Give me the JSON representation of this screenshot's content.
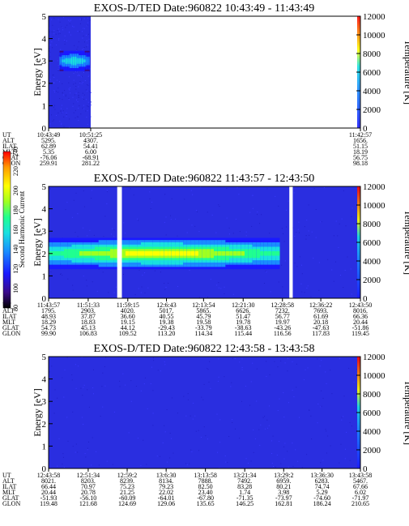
{
  "chart_data": {
    "type": "heatmap",
    "colorbar": {
      "label": "Second Harmonic Current",
      "ticks": [
        "240",
        "220",
        "200",
        "180",
        "160",
        "140",
        "120",
        "100",
        "80"
      ],
      "range": [
        80,
        240
      ]
    },
    "panels": [
      {
        "title": "EXOS-D/TED   Date:960822  10:43:49 - 11:43:49",
        "ylabel": "Energy [eV]",
        "y2label": "Temperature [K]",
        "ylim": [
          0,
          5
        ],
        "y_ticks": [
          "0",
          "1",
          "2",
          "3",
          "4",
          "5"
        ],
        "y2lim": [
          0,
          12000
        ],
        "y2_ticks": [
          "0",
          "2000",
          "4000",
          "6000",
          "8000",
          "10000",
          "12000"
        ],
        "data_end_fraction": 0.135,
        "band": {
          "energy_center": 3.0,
          "energy_halfwidth": 0.45,
          "x_start_fraction": 0.035,
          "x_end_fraction": 0.13,
          "intensity": 160
        },
        "gaps": [],
        "temperature_trace": [],
        "table": {
          "row_labels": [
            "UT",
            "ALT",
            "ILAT",
            "MLT",
            "GLAT",
            "GLON"
          ],
          "columns": [
            {
              "values": [
                "10:43:49",
                "5295.",
                "62.89",
                "5.35",
                "-76.06",
                "259.91"
              ]
            },
            {
              "values": [
                "10:51:25",
                "4307.",
                "54.41",
                "6.00",
                "-68.91",
                "281.22"
              ]
            },
            {
              "values": [
                "11:42:57",
                "1656.",
                "51.15",
                "18.19",
                "56.75",
                "98.18"
              ]
            }
          ],
          "column_fractions": [
            0.0,
            0.135,
            1.0
          ]
        }
      },
      {
        "title": "EXOS-D/TED   Date:960822  11:43:57 - 12:43:50",
        "ylabel": "Energy [eV]",
        "y2label": "Temperature [K]",
        "ylim": [
          0,
          5
        ],
        "y_ticks": [
          "0",
          "1",
          "2",
          "3",
          "4",
          "5"
        ],
        "y2lim": [
          0,
          12000
        ],
        "y2_ticks": [
          "0",
          "2000",
          "4000",
          "6000",
          "8000",
          "10000",
          "12000"
        ],
        "data_end_fraction": 1.0,
        "band": {
          "energy_center": 2.0,
          "energy_halfwidth": 0.7,
          "x_start_fraction": 0.0,
          "x_end_fraction": 0.74,
          "intensity": 200
        },
        "gaps": [
          [
            0.22,
            0.235
          ],
          [
            0.772,
            0.783
          ]
        ],
        "temperature_trace": [],
        "table": {
          "row_labels": [
            "UT",
            "ALT",
            "ILAT",
            "MLT",
            "GLAT",
            "GLON"
          ],
          "columns": [
            {
              "values": [
                "11:43:57",
                "1795.",
                "48.93",
                "18.29",
                "54.73",
                "99.90"
              ]
            },
            {
              "values": [
                "11:51:33",
                "2903.",
                "37.87",
                "18.83",
                "45.13",
                "106.83"
              ]
            },
            {
              "values": [
                "11:59:15",
                "4020.",
                "36.60",
                "19.15",
                "44.12",
                "109.52"
              ]
            },
            {
              "values": [
                "12:6:43",
                "5017.",
                "40.55",
                "19.38",
                "-29.43",
                "113.20"
              ]
            },
            {
              "values": [
                "12:13:54",
                "5865.",
                "45.79",
                "19.58",
                "-33.79",
                "114.34"
              ]
            },
            {
              "values": [
                "12:21:30",
                "6626.",
                "51.47",
                "19.78",
                "-38.63",
                "115.44"
              ]
            },
            {
              "values": [
                "12:28:58",
                "7232.",
                "56.77",
                "19.97",
                "-43.26",
                "116.56"
              ]
            },
            {
              "values": [
                "12:36:22",
                "7693.",
                "61.69",
                "20.18",
                "-47.63",
                "117.83"
              ]
            },
            {
              "values": [
                "12:43:50",
                "8016.",
                "66.36",
                "20.44",
                "-51.86",
                "119.45"
              ]
            }
          ],
          "column_fractions": [
            0.0,
            0.127,
            0.254,
            0.378,
            0.497,
            0.624,
            0.75,
            0.873,
            1.0
          ]
        }
      },
      {
        "title": "EXOS-D/TED   Date:960822  12:43:58 - 13:43:58",
        "ylabel": "Energy [eV]",
        "y2label": "Temperature [K]",
        "ylim": [
          0,
          5
        ],
        "y_ticks": [
          "0",
          "1",
          "2",
          "3",
          "4",
          "5"
        ],
        "y2lim": [
          0,
          12000
        ],
        "y2_ticks": [
          "0",
          "2000",
          "4000",
          "6000",
          "8000",
          "10000",
          "12000"
        ],
        "data_end_fraction": 1.0,
        "band": null,
        "gaps": [],
        "temperature_trace": [],
        "table": {
          "row_labels": [
            "UT",
            "ALT",
            "ILAT",
            "MLT",
            "GLAT",
            "GLON"
          ],
          "columns": [
            {
              "values": [
                "12:43:58",
                "8021.",
                "66.44",
                "20.44",
                "-51.93",
                "119.48"
              ]
            },
            {
              "values": [
                "12:51:34",
                "8203.",
                "70.97",
                "20.78",
                "-56.10",
                "121.68"
              ]
            },
            {
              "values": [
                "12:59:2",
                "8239.",
                "75.23",
                "21.25",
                "-60.09",
                "124.69"
              ]
            },
            {
              "values": [
                "13:6:30",
                "8134.",
                "79.23",
                "22.02",
                "-64.01",
                "129.06"
              ]
            },
            {
              "values": [
                "13:13:58",
                "7888.",
                "82.50",
                "23.40",
                "-67.80",
                "135.65"
              ]
            },
            {
              "values": [
                "13:21:34",
                "7492.",
                "83.28",
                "1.74",
                "-71.35",
                "146.25"
              ]
            },
            {
              "values": [
                "13:29:2",
                "6959.",
                "80.21",
                "3.98",
                "-73.97",
                "162.81"
              ]
            },
            {
              "values": [
                "13:36:30",
                "6283.",
                "74.74",
                "5.29",
                "-74.60",
                "186.24"
              ]
            },
            {
              "values": [
                "13:43:58",
                "5467.",
                "67.66",
                "6.02",
                "-71.97",
                "210.65"
              ]
            }
          ],
          "column_fractions": [
            0.0,
            0.127,
            0.252,
            0.377,
            0.503,
            0.629,
            0.754,
            0.877,
            1.0
          ]
        }
      }
    ],
    "colors": {
      "background_low": "#2a2ee0",
      "colormap": [
        "#000000",
        "#3a0a8a",
        "#1a1aff",
        "#1a8cff",
        "#19e0e0",
        "#20ff90",
        "#a0ff20",
        "#ffff00",
        "#ff9a00",
        "#ff0000"
      ]
    }
  }
}
